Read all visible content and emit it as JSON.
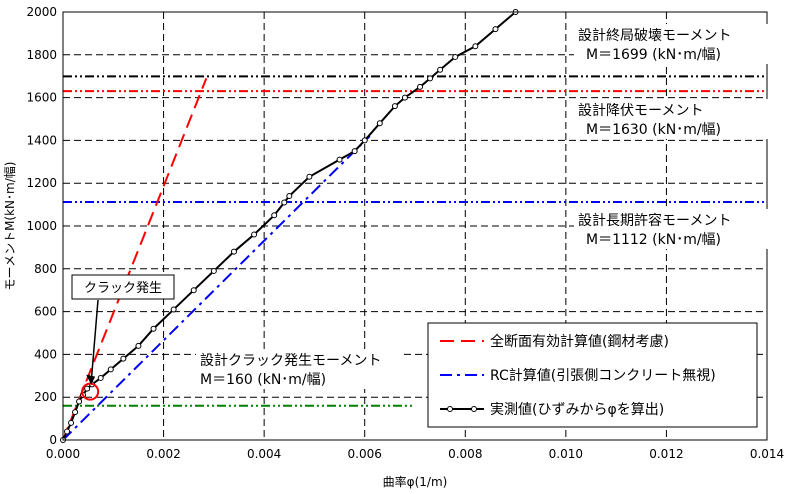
{
  "chart_data": {
    "type": "line",
    "xlabel": "曲率φ(1/m)",
    "ylabel": "モーメントM(kN･m/幅)",
    "xlim": [
      0,
      0.014
    ],
    "ylim": [
      0,
      2000
    ],
    "x_ticks": [
      0,
      0.002,
      0.004,
      0.006,
      0.008,
      0.01,
      0.012,
      0.014
    ],
    "x_tick_labels": [
      "0.000",
      "0.002",
      "0.004",
      "0.006",
      "0.008",
      "0.010",
      "0.012",
      "0.014"
    ],
    "y_ticks": [
      0,
      200,
      400,
      600,
      800,
      1000,
      1200,
      1400,
      1600,
      1800,
      2000
    ],
    "y_tick_labels": [
      "0",
      "200",
      "400",
      "600",
      "800",
      "1000",
      "1200",
      "1400",
      "1600",
      "1800",
      "2000"
    ],
    "grid": true,
    "series": [
      {
        "name": "全断面有効計算値(鋼材考慮)",
        "color": "#ff0000",
        "dash": "long-dash",
        "x": [
          0,
          0.00285
        ],
        "y": [
          0,
          1690
        ]
      },
      {
        "name": "RC計算値(引張側コンクリート無視)",
        "color": "#0000ff",
        "dash": "dash-dot",
        "x": [
          0,
          0.0061
        ],
        "y": [
          0,
          1420
        ]
      },
      {
        "name": "実測値(ひずみからφを算出)",
        "color": "#000000",
        "dash": "solid",
        "marker": "circle",
        "x": [
          0,
          8e-05,
          0.00016,
          0.00024,
          0.00032,
          0.0004,
          0.00048,
          0.00058,
          0.00075,
          0.00095,
          0.0012,
          0.0015,
          0.0018,
          0.0022,
          0.0026,
          0.003,
          0.0034,
          0.0038,
          0.0042,
          0.0044,
          0.0045,
          0.0049,
          0.0055,
          0.0058,
          0.006,
          0.0063,
          0.0066,
          0.0068,
          0.0071,
          0.0073,
          0.0075,
          0.0078,
          0.0082,
          0.0086,
          0.009
        ],
        "y": [
          0,
          40,
          80,
          130,
          180,
          210,
          240,
          260,
          290,
          330,
          380,
          440,
          520,
          610,
          700,
          790,
          880,
          960,
          1050,
          1110,
          1140,
          1230,
          1310,
          1350,
          1400,
          1480,
          1560,
          1600,
          1650,
          1690,
          1730,
          1790,
          1840,
          1920,
          2000
        ]
      }
    ],
    "reference_lines": [
      {
        "y": 1699,
        "color": "#000000",
        "style": "dash-dot-dot"
      },
      {
        "y": 1630,
        "color": "#ff0000",
        "style": "dash-dot-dot"
      },
      {
        "y": 1112,
        "color": "#0000ff",
        "style": "dash-dot-dot"
      },
      {
        "y": 160,
        "color": "#008000",
        "style": "dash-dot-dot",
        "x_end": 0.007
      }
    ],
    "annotations": [
      {
        "line1": "設計終局破壊モーメント",
        "line2": "M＝1699 (kN･m/幅)"
      },
      {
        "line1": "設計降伏モーメント",
        "line2": "M＝1630 (kN･m/幅)"
      },
      {
        "line1": "設計長期許容モーメント",
        "line2": "M＝1112 (kN･m/幅)"
      },
      {
        "line1": "設計クラック発生モーメント",
        "line2": "M＝160 (kN･m/幅)"
      }
    ],
    "callout": {
      "label": "クラック発生",
      "x": 0.0005,
      "y": 240
    },
    "legend": {
      "placement": "bottom-right"
    }
  }
}
